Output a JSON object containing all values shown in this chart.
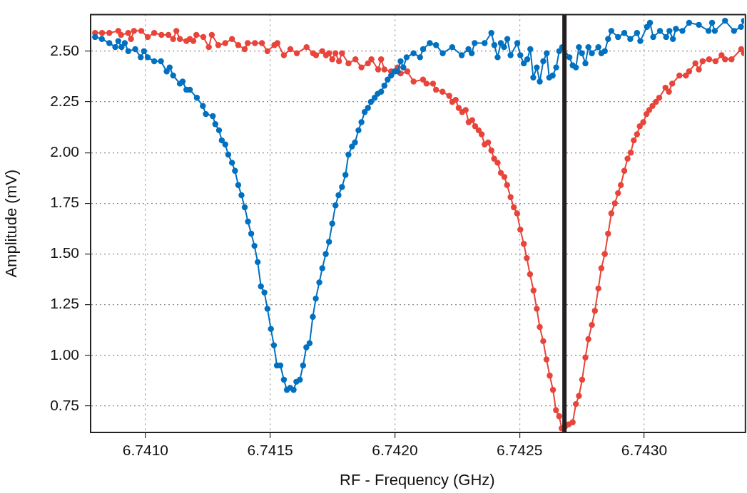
{
  "chart_data": {
    "type": "line",
    "xlabel": "RF - Frequency (GHz)",
    "ylabel": "Amplitude (mV)",
    "xlim": [
      6.74078,
      6.7434
    ],
    "xticks": [
      {
        "value": 6.741,
        "label": "6.7410"
      },
      {
        "value": 6.7415,
        "label": "6.7415"
      },
      {
        "value": 6.742,
        "label": "6.7420"
      },
      {
        "value": 6.7425,
        "label": "6.7425"
      },
      {
        "value": 6.743,
        "label": "6.7430"
      }
    ],
    "ylim": [
      0.62,
      2.68
    ],
    "yticks": [
      0.75,
      {
        "value": 1,
        "label": "1.00"
      },
      1.25,
      {
        "value": 1.5,
        "label": "1.50"
      },
      1.75,
      {
        "value": 2,
        "label": "2.00"
      },
      2.25,
      {
        "value": 2.5,
        "label": "2.50"
      }
    ],
    "grid": true,
    "legend": false,
    "marker": "circle",
    "line_style": "solid",
    "ref_lines": [
      {
        "axis": "x",
        "value": 6.74268,
        "color": "#231f20"
      }
    ],
    "series": [
      {
        "color": "#0070c0",
        "x": [
          6.740798,
          6.740825,
          6.740855,
          6.740879,
          6.740891,
          6.740904,
          6.740917,
          6.740931,
          6.740959,
          6.740981,
          6.740994,
          6.741009,
          6.741035,
          6.741062,
          6.741085,
          6.741097,
          6.741111,
          6.741138,
          6.741149,
          6.741164,
          6.741178,
          6.741206,
          6.74123,
          6.741242,
          6.74127,
          6.74128,
          6.741295,
          6.741306,
          6.74132,
          6.741332,
          6.741347,
          6.741359,
          6.741372,
          6.741385,
          6.741398,
          6.741411,
          6.741424,
          6.741437,
          6.74145,
          6.741463,
          6.741477,
          6.741489,
          6.741503,
          6.741515,
          6.741527,
          6.741541,
          6.741555,
          6.741567,
          6.74158,
          6.741594,
          6.741605,
          6.741619,
          6.741632,
          6.741645,
          6.741658,
          6.741671,
          6.741683,
          6.741697,
          6.741709,
          6.741723,
          6.741736,
          6.741749,
          6.741762,
          6.741774,
          6.741788,
          6.741802,
          6.741814,
          6.741828,
          6.74184,
          6.741854,
          6.741866,
          6.741879,
          6.741892,
          6.741904,
          6.741919,
          6.741931,
          6.741945,
          6.741958,
          6.741971,
          6.741985,
          6.741999,
          6.742011,
          6.742023,
          6.742034,
          6.742047,
          6.742075,
          6.742101,
          6.742113,
          6.74214,
          6.742165,
          6.742192,
          6.74223,
          6.742268,
          6.742295,
          6.742308,
          6.74232,
          6.74236,
          6.742387,
          6.742399,
          6.742412,
          6.742425,
          6.742438,
          6.742451,
          6.742464,
          6.742491,
          6.742503,
          6.742517,
          6.742531,
          6.742543,
          6.742555,
          6.742569,
          6.742581,
          6.742595,
          6.742609,
          6.742619,
          6.742633,
          6.742647,
          6.742659,
          6.742671,
          6.7427,
          6.742713,
          6.742726,
          6.742738,
          6.74275,
          6.742764,
          6.742776,
          6.74279,
          6.742816,
          6.742828,
          6.742842,
          6.742855,
          6.742868,
          6.742895,
          6.74292,
          6.742944,
          6.742971,
          6.742984,
          6.743011,
          6.743023,
          6.743036,
          6.743063,
          6.743088,
          6.743101,
          6.743115,
          6.743127,
          6.743153,
          6.74318,
          6.743219,
          6.743258,
          6.743272,
          6.743283,
          6.743324,
          6.74336,
          6.743388,
          6.7434
        ],
        "values": [
          2.57,
          2.56,
          2.54,
          2.52,
          2.55,
          2.52,
          2.54,
          2.5,
          2.51,
          2.47,
          2.5,
          2.47,
          2.45,
          2.45,
          2.4,
          2.42,
          2.38,
          2.34,
          2.35,
          2.31,
          2.31,
          2.27,
          2.23,
          2.19,
          2.18,
          2.14,
          2.11,
          2.06,
          2.04,
          1.99,
          1.95,
          1.91,
          1.84,
          1.79,
          1.73,
          1.66,
          1.6,
          1.54,
          1.46,
          1.34,
          1.31,
          1.23,
          1.13,
          1.05,
          0.95,
          0.95,
          0.88,
          0.83,
          0.84,
          0.83,
          0.87,
          0.88,
          0.95,
          1.04,
          1.06,
          1.19,
          1.28,
          1.36,
          1.43,
          1.5,
          1.56,
          1.65,
          1.74,
          1.79,
          1.83,
          1.89,
          1.99,
          2.03,
          2.05,
          2.11,
          2.15,
          2.2,
          2.22,
          2.25,
          2.27,
          2.29,
          2.3,
          2.33,
          2.36,
          2.38,
          2.4,
          2.4,
          2.45,
          2.42,
          2.47,
          2.49,
          2.47,
          2.51,
          2.54,
          2.53,
          2.49,
          2.52,
          2.48,
          2.51,
          2.49,
          2.54,
          2.54,
          2.59,
          2.53,
          2.47,
          2.54,
          2.52,
          2.56,
          2.48,
          2.54,
          2.48,
          2.44,
          2.46,
          2.51,
          2.37,
          2.42,
          2.35,
          2.45,
          2.49,
          2.37,
          2.38,
          2.42,
          2.5,
          2.52,
          2.47,
          2.43,
          2.42,
          2.52,
          2.49,
          2.44,
          2.52,
          2.49,
          2.52,
          2.49,
          2.5,
          2.56,
          2.6,
          2.57,
          2.59,
          2.56,
          2.59,
          2.55,
          2.62,
          2.64,
          2.57,
          2.6,
          2.57,
          2.6,
          2.56,
          2.61,
          2.6,
          2.64,
          2.63,
          2.6,
          2.64,
          2.6,
          2.65,
          2.6,
          2.62,
          2.65
        ]
      },
      {
        "color": "#e8443a",
        "x": [
          6.740798,
          6.740826,
          6.740855,
          6.740891,
          6.740902,
          6.740931,
          6.740942,
          6.740954,
          6.740983,
          6.741009,
          6.741035,
          6.741064,
          6.741092,
          6.741111,
          6.741124,
          6.741138,
          6.741164,
          6.741178,
          6.741192,
          6.741204,
          6.741232,
          6.741254,
          6.741266,
          6.741292,
          6.74132,
          6.741347,
          6.741372,
          6.741398,
          6.74141,
          6.741439,
          6.741467,
          6.741489,
          6.741517,
          6.741529,
          6.741555,
          6.741581,
          6.741607,
          6.741646,
          6.741672,
          6.741684,
          6.741709,
          6.741724,
          6.741736,
          6.741749,
          6.741762,
          6.741776,
          6.741788,
          6.741814,
          6.741842,
          6.741866,
          6.741892,
          6.741906,
          6.741933,
          6.741945,
          6.741958,
          6.741985,
          6.742011,
          6.742023,
          6.74205,
          6.742075,
          6.742113,
          6.742127,
          6.742153,
          6.742165,
          6.742191,
          6.742218,
          6.74223,
          6.742244,
          6.742256,
          6.74227,
          6.742284,
          6.742296,
          6.74231,
          6.742322,
          6.742336,
          6.742348,
          6.74236,
          6.742374,
          6.742387,
          6.742398,
          6.742412,
          6.742425,
          6.742439,
          6.74245,
          6.742464,
          6.742477,
          6.74249,
          6.742503,
          6.742517,
          6.742529,
          6.742542,
          6.742556,
          6.742569,
          6.742581,
          6.742595,
          6.742608,
          6.742621,
          6.742634,
          6.742646,
          6.742659,
          6.742669,
          6.742683,
          6.742697,
          6.742713,
          6.742726,
          6.742738,
          6.742751,
          6.742764,
          6.742776,
          6.74279,
          6.742802,
          6.742816,
          6.742828,
          6.742842,
          6.742855,
          6.742868,
          6.742882,
          6.742895,
          6.742906,
          6.74292,
          6.742933,
          6.742946,
          6.742958,
          6.742971,
          6.742982,
          6.742996,
          6.743009,
          6.74302,
          6.743033,
          6.743047,
          6.74306,
          6.743085,
          6.743099,
          6.743112,
          6.743141,
          6.743167,
          6.74318,
          6.743205,
          6.743219,
          6.743234,
          6.74326,
          6.743286,
          6.74331,
          6.743324,
          6.74335,
          6.743389,
          6.7434
        ],
        "values": [
          2.59,
          2.59,
          2.59,
          2.6,
          2.58,
          2.59,
          2.56,
          2.6,
          2.6,
          2.57,
          2.59,
          2.58,
          2.58,
          2.56,
          2.6,
          2.56,
          2.55,
          2.56,
          2.55,
          2.58,
          2.57,
          2.52,
          2.58,
          2.53,
          2.54,
          2.56,
          2.53,
          2.51,
          2.54,
          2.54,
          2.54,
          2.5,
          2.53,
          2.54,
          2.48,
          2.51,
          2.49,
          2.52,
          2.49,
          2.48,
          2.5,
          2.48,
          2.49,
          2.46,
          2.49,
          2.45,
          2.49,
          2.44,
          2.46,
          2.42,
          2.44,
          2.46,
          2.41,
          2.46,
          2.41,
          2.4,
          2.42,
          2.39,
          2.4,
          2.35,
          2.36,
          2.34,
          2.34,
          2.31,
          2.3,
          2.28,
          2.25,
          2.26,
          2.22,
          2.2,
          2.21,
          2.15,
          2.16,
          2.13,
          2.11,
          2.09,
          2.04,
          2.05,
          2.01,
          1.97,
          1.95,
          1.9,
          1.88,
          1.84,
          1.78,
          1.73,
          1.7,
          1.62,
          1.55,
          1.48,
          1.4,
          1.32,
          1.23,
          1.14,
          1.07,
          0.98,
          0.9,
          0.83,
          0.73,
          0.7,
          0.64,
          0.65,
          0.66,
          0.67,
          0.76,
          0.8,
          0.88,
          0.99,
          1.08,
          1.15,
          1.22,
          1.33,
          1.43,
          1.5,
          1.6,
          1.7,
          1.75,
          1.8,
          1.84,
          1.91,
          1.97,
          2,
          2.06,
          2.09,
          2.13,
          2.15,
          2.19,
          2.21,
          2.23,
          2.25,
          2.27,
          2.32,
          2.3,
          2.34,
          2.38,
          2.38,
          2.4,
          2.44,
          2.41,
          2.45,
          2.46,
          2.45,
          2.48,
          2.46,
          2.46,
          2.51,
          2.49
        ]
      }
    ]
  }
}
